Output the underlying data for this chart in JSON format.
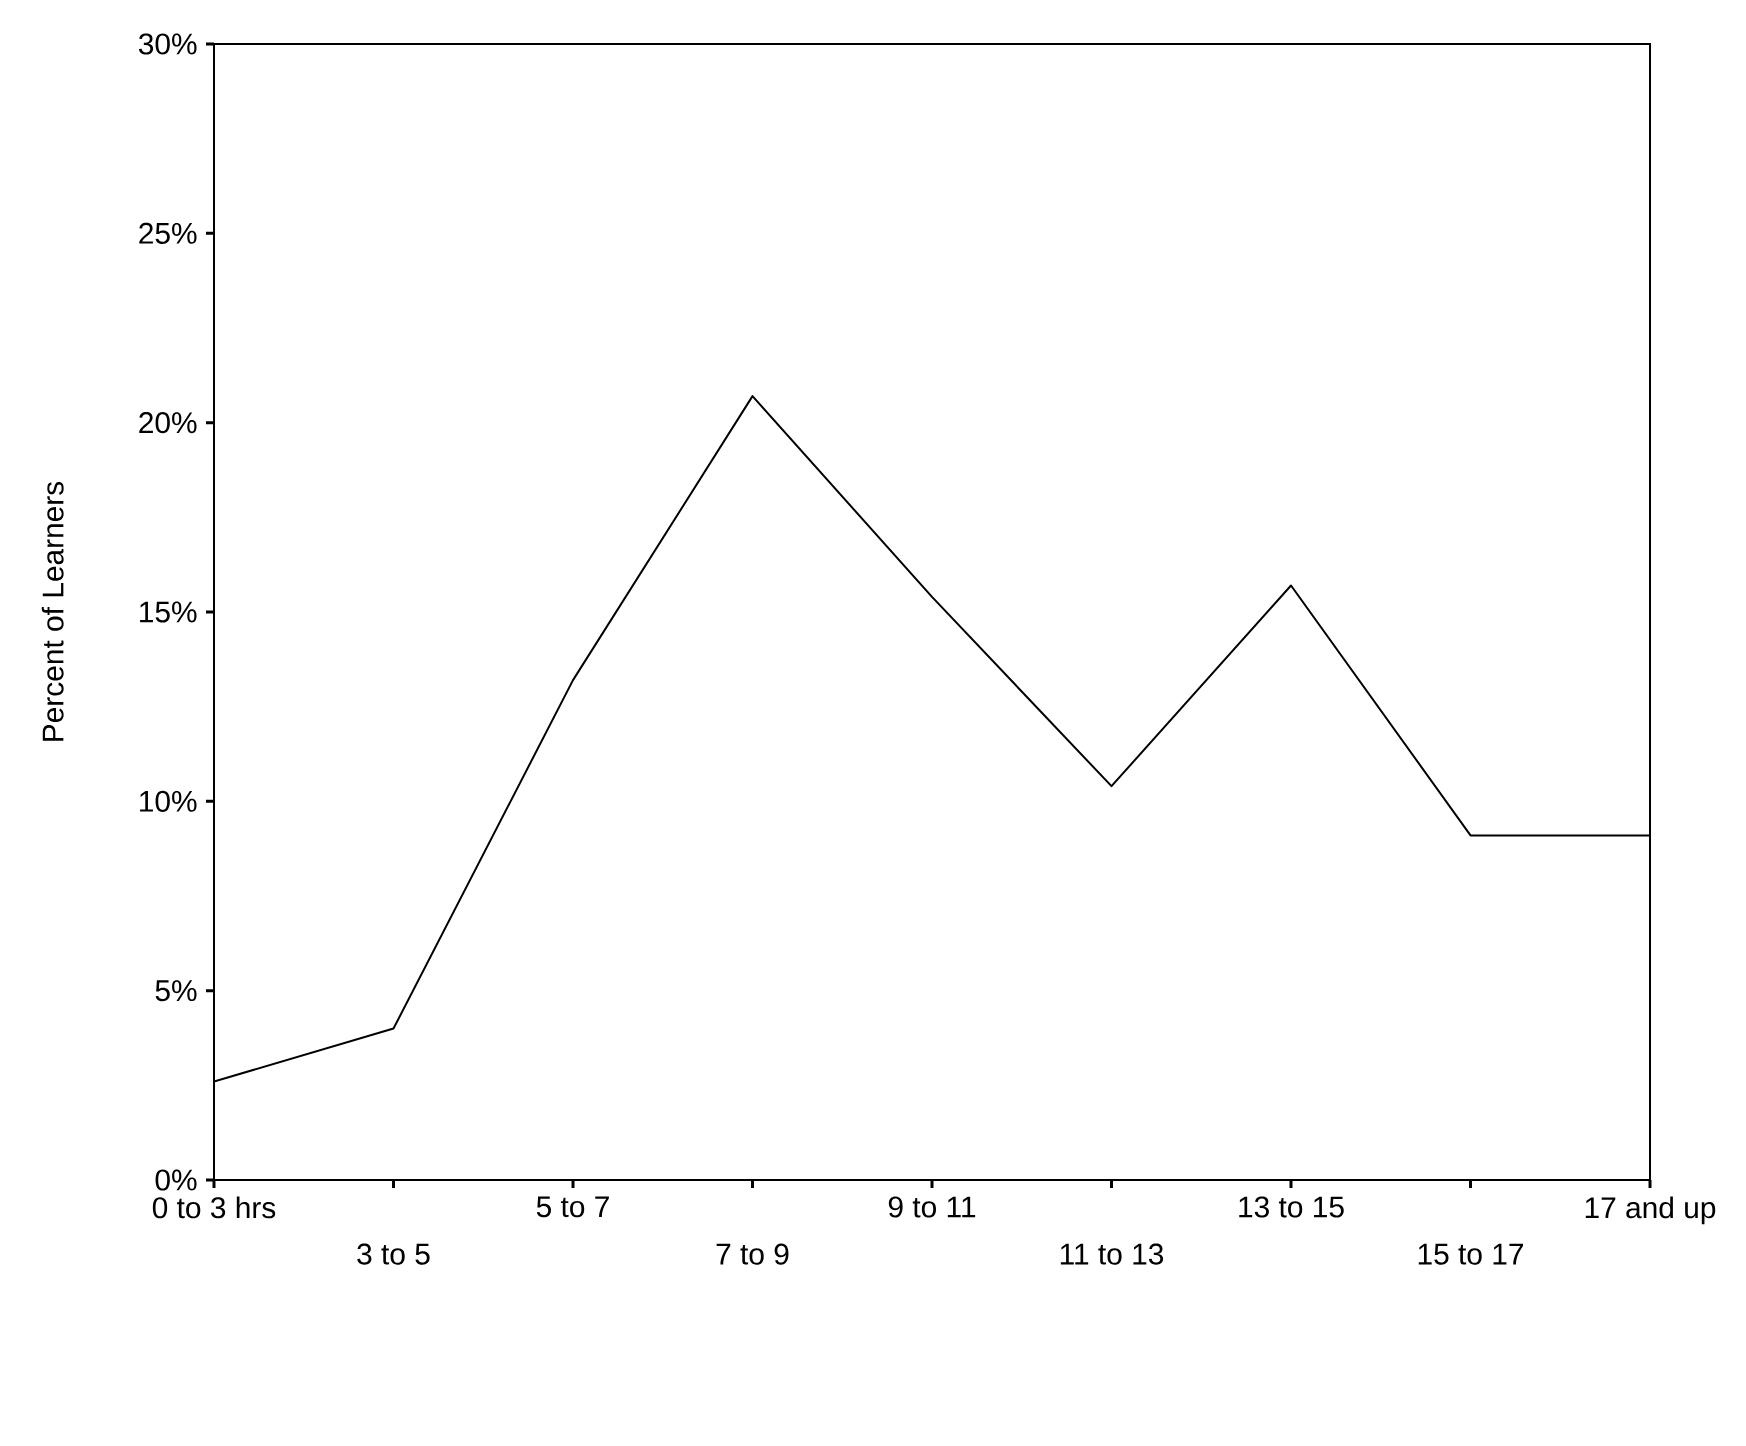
{
  "chart_data": {
    "type": "line",
    "ylabel": "Percent of Learners",
    "categories": [
      "0 to 3 hrs",
      "3 to 5",
      "5 to 7",
      "7 to 9",
      "9 to 11",
      "11 to 13",
      "13 to 15",
      "15 to 17",
      "17 and up"
    ],
    "values": [
      2.6,
      4.0,
      13.2,
      20.7,
      15.4,
      10.4,
      15.7,
      9.1,
      9.1
    ],
    "color": "#000000",
    "marker": "none",
    "line_style": "solid",
    "ylim": [
      0,
      30
    ],
    "yticks": [
      {
        "value": 0,
        "label": "0%"
      },
      {
        "value": 5,
        "label": "5%"
      },
      {
        "value": 10,
        "label": "10%"
      },
      {
        "value": 15,
        "label": "15%"
      },
      {
        "value": 20,
        "label": "20%"
      },
      {
        "value": 25,
        "label": "25%"
      },
      {
        "value": 30,
        "label": "30%"
      }
    ]
  }
}
